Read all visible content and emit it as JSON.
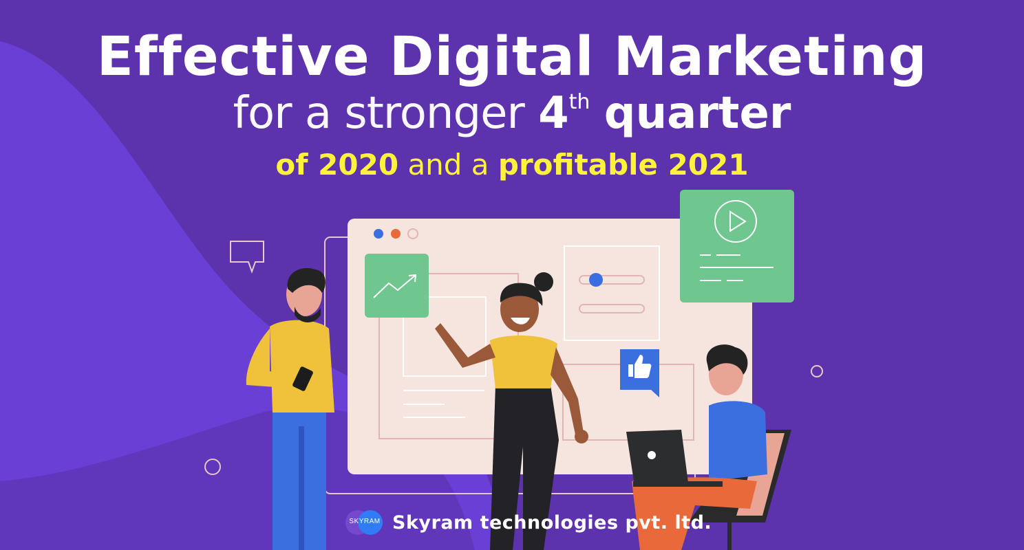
{
  "headline": {
    "line1": "Effective Digital Marketing",
    "line2_thin": "for a stronger",
    "line2_num": "4",
    "line2_sup": "th",
    "line2_bold": "quarter",
    "line3_a": "of 2020",
    "line3_b": "and a",
    "line3_c": "profitable 2021"
  },
  "brand": {
    "logo_text": "SKYRAM",
    "company": "Skyram technologies pvt. ltd."
  },
  "colors": {
    "background": "#5d33ad",
    "wave": "#6a3fd6",
    "headline_white": "#ffffff",
    "headline_yellow": "#fff23a",
    "panel": "#f6e4df",
    "card_green": "#6fc68f",
    "accent_blue": "#3b6fe0"
  },
  "icons": [
    "chat-bubble-icon",
    "trend-up-icon",
    "play-icon",
    "thumbs-up-icon",
    "slider-icon"
  ]
}
